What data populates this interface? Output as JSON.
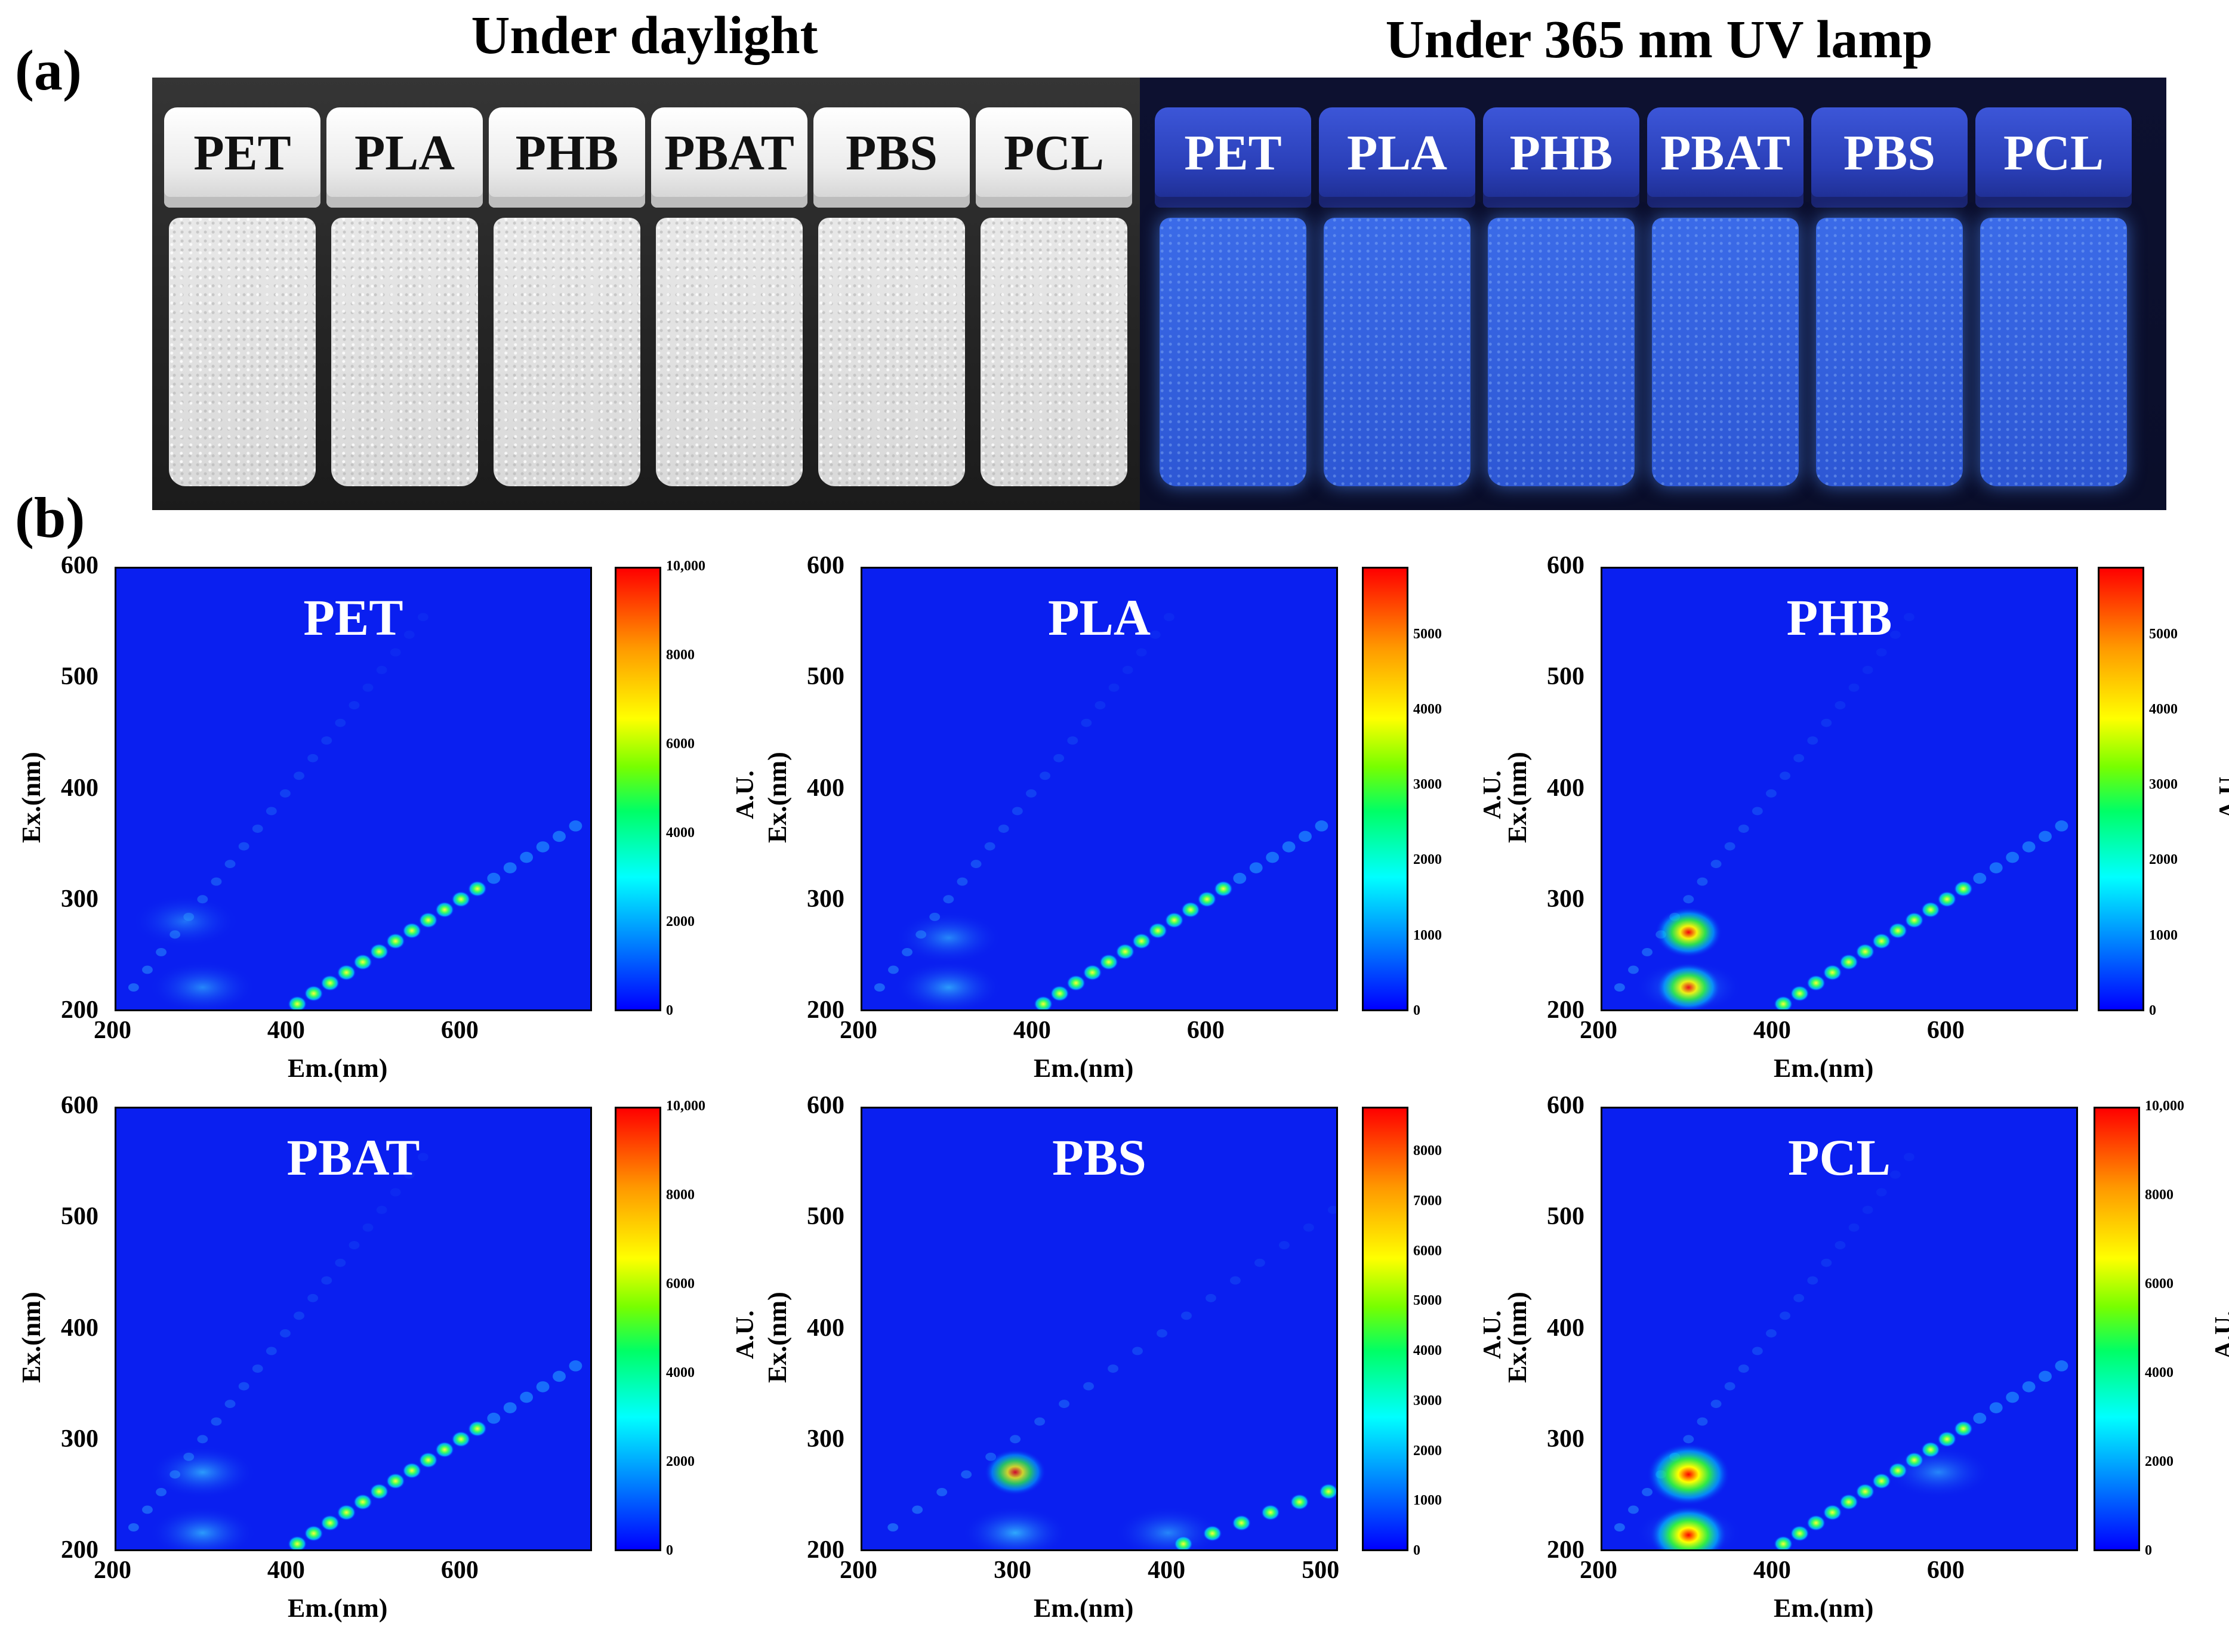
{
  "panel_a": {
    "letter": "(a)",
    "heading_daylight": "Under daylight",
    "heading_uv": "Under 365 nm UV lamp",
    "daylight_vials": [
      "PET",
      "PLA",
      "PHB",
      "PBAT",
      "PBS",
      "PCL"
    ],
    "uv_vials": [
      "PET",
      "PLA",
      "PHB",
      "PBAT",
      "PBS",
      "PCL"
    ]
  },
  "panel_b": {
    "letter": "(b)"
  },
  "chart_data": [
    {
      "type": "heatmap",
      "title": "PET",
      "xlabel": "Em.(nm)",
      "ylabel": "Ex.(nm)",
      "colorbar_label": "A.U.",
      "xticks": [
        "200",
        "400",
        "600"
      ],
      "yticks": [
        "200",
        "300",
        "400",
        "500",
        "600"
      ],
      "xlim": [
        200,
        750
      ],
      "ylim": [
        200,
        600
      ],
      "colorbar_ticks": [
        "0",
        "2000",
        "4000",
        "6000",
        "8000",
        "10,000"
      ],
      "colorbar_max": 10000
    },
    {
      "type": "heatmap",
      "title": "PLA",
      "xlabel": "Em.(nm)",
      "ylabel": "Ex.(nm)",
      "colorbar_label": "A.U.",
      "xticks": [
        "200",
        "400",
        "600"
      ],
      "yticks": [
        "200",
        "300",
        "400",
        "500",
        "600"
      ],
      "xlim": [
        200,
        750
      ],
      "ylim": [
        200,
        600
      ],
      "colorbar_ticks": [
        "0",
        "1000",
        "2000",
        "3000",
        "4000",
        "5000"
      ],
      "colorbar_max": 5900
    },
    {
      "type": "heatmap",
      "title": "PHB",
      "xlabel": "Em.(nm)",
      "ylabel": "Ex.(nm)",
      "colorbar_label": "A.U.",
      "xticks": [
        "200",
        "400",
        "600"
      ],
      "yticks": [
        "200",
        "300",
        "400",
        "500",
        "600"
      ],
      "xlim": [
        200,
        750
      ],
      "ylim": [
        200,
        600
      ],
      "colorbar_ticks": [
        "0",
        "1000",
        "2000",
        "3000",
        "4000",
        "5000"
      ],
      "colorbar_max": 5900
    },
    {
      "type": "heatmap",
      "title": "PBAT",
      "xlabel": "Em.(nm)",
      "ylabel": "Ex.(nm)",
      "colorbar_label": "A.U.",
      "xticks": [
        "200",
        "400",
        "600"
      ],
      "yticks": [
        "200",
        "300",
        "400",
        "500",
        "600"
      ],
      "xlim": [
        200,
        750
      ],
      "ylim": [
        200,
        600
      ],
      "colorbar_ticks": [
        "0",
        "2000",
        "4000",
        "6000",
        "8000",
        "10,000"
      ],
      "colorbar_max": 10000
    },
    {
      "type": "heatmap",
      "title": "PBS",
      "xlabel": "Em.(nm)",
      "ylabel": "Ex.(nm)",
      "colorbar_label": "A.U.",
      "xticks": [
        "200",
        "300",
        "400",
        "500"
      ],
      "yticks": [
        "200",
        "300",
        "400",
        "500",
        "600"
      ],
      "xlim": [
        200,
        510
      ],
      "ylim": [
        200,
        600
      ],
      "colorbar_ticks": [
        "0",
        "1000",
        "2000",
        "3000",
        "4000",
        "5000",
        "6000",
        "7000",
        "8000"
      ],
      "colorbar_max": 8900
    },
    {
      "type": "heatmap",
      "title": "PCL",
      "xlabel": "Em.(nm)",
      "ylabel": "Ex.(nm)",
      "colorbar_label": "A.U.",
      "xticks": [
        "200",
        "400",
        "600"
      ],
      "yticks": [
        "200",
        "300",
        "400",
        "500",
        "600"
      ],
      "xlim": [
        200,
        750
      ],
      "ylim": [
        200,
        600
      ],
      "colorbar_ticks": [
        "0",
        "2000",
        "4000",
        "6000",
        "8000",
        "10,000"
      ],
      "colorbar_max": 10000
    }
  ]
}
